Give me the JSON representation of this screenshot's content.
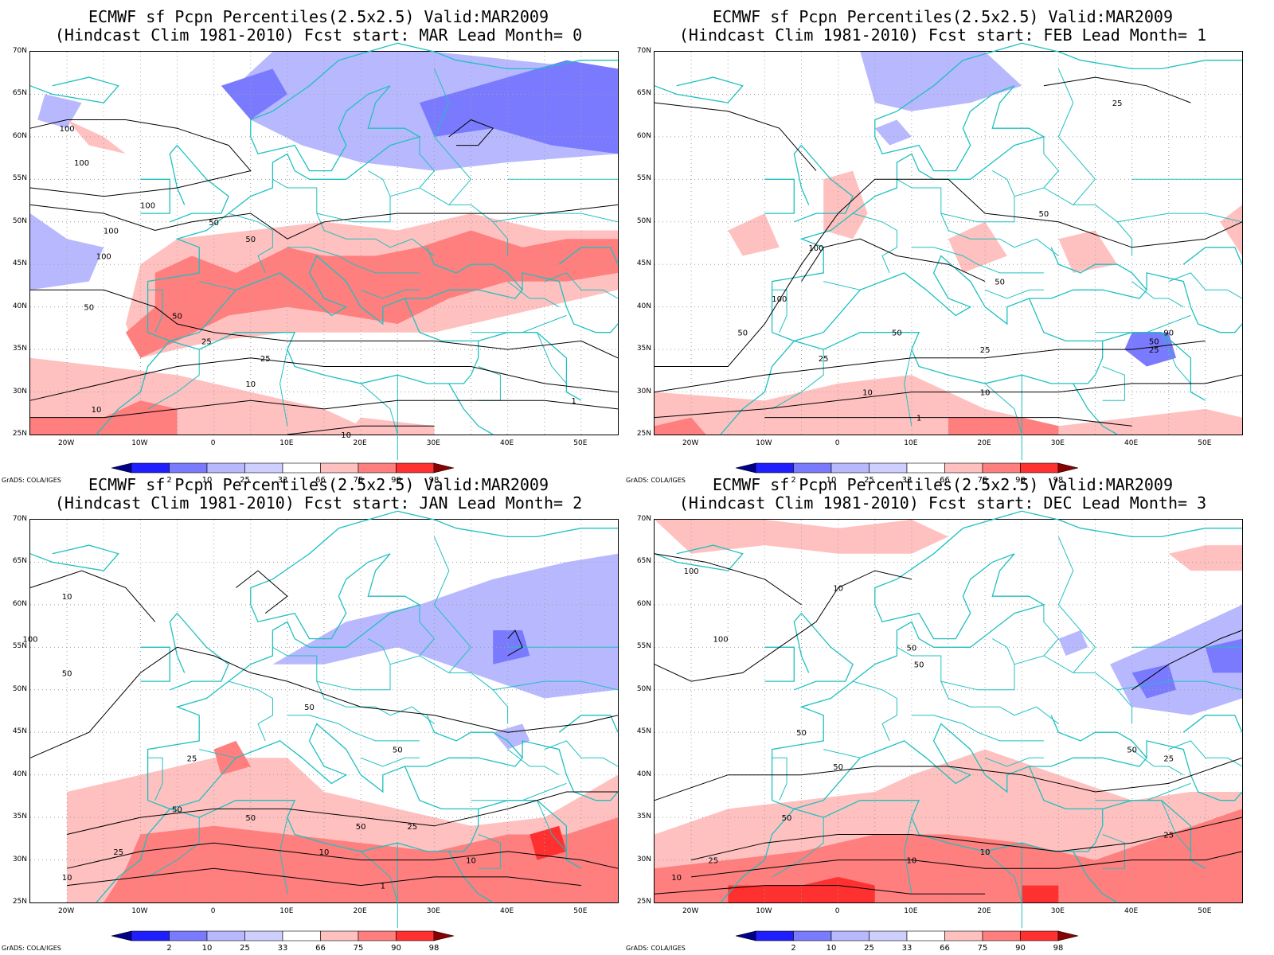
{
  "credit": "GrADS: COLA/IGES",
  "lat_labels": [
    "70N",
    "65N",
    "60N",
    "55N",
    "50N",
    "45N",
    "40N",
    "35N",
    "30N",
    "25N"
  ],
  "lon_labels": [
    "20W",
    "10W",
    "0",
    "10E",
    "20E",
    "30E",
    "40E",
    "50E"
  ],
  "colorbar": {
    "labels": [
      "2",
      "10",
      "25",
      "33",
      "66",
      "75",
      "90",
      "98"
    ],
    "colors": [
      "#00008b",
      "#1e1eff",
      "#7a7aff",
      "#b8b8ff",
      "#cfcfff",
      "#ffffff",
      "#ffc0c0",
      "#ff7e7e",
      "#ff3030",
      "#8b0000"
    ]
  },
  "colors": {
    "coast": "#20c0c0",
    "contour": "#000000",
    "grid": "#a0a0a0"
  },
  "panels": [
    {
      "title_line1": "ECMWF sf Pcpn Percentiles(2.5x2.5) Valid:MAR2009",
      "title_line2": "(Hindcast Clim 1981-2010) Fcst start: MAR  Lead Month= 0",
      "contour_labels": [
        "100",
        "100",
        "100",
        "100",
        "100",
        "50",
        "50",
        "50",
        "50",
        "25",
        "25",
        "10",
        "10",
        "10",
        "1"
      ]
    },
    {
      "title_line1": "ECMWF sf Pcpn Percentiles(2.5x2.5) Valid:MAR2009",
      "title_line2": "(Hindcast Clim 1981-2010) Fcst start: FEB  Lead Month= 1",
      "contour_labels": [
        "25",
        "50",
        "100",
        "100",
        "50",
        "50",
        "50",
        "25",
        "25",
        "10",
        "10",
        "1",
        "25",
        "50",
        "90"
      ]
    },
    {
      "title_line1": "ECMWF sf Pcpn Percentiles(2.5x2.5) Valid:MAR2009",
      "title_line2": "(Hindcast Clim 1981-2010) Fcst start: JAN  Lead Month= 2",
      "contour_labels": [
        "10",
        "100",
        "50",
        "25",
        "50",
        "50",
        "50",
        "50",
        "50",
        "25",
        "25",
        "10",
        "10",
        "10",
        "1"
      ]
    },
    {
      "title_line1": "ECMWF sf Pcpn Percentiles(2.5x2.5) Valid:MAR2009",
      "title_line2": "(Hindcast Clim 1981-2010) Fcst start: DEC  Lead Month= 3",
      "contour_labels": [
        "100",
        "10",
        "100",
        "50",
        "50",
        "50",
        "50",
        "50",
        "25",
        "10",
        "25",
        "10",
        "50",
        "25",
        "10"
      ]
    }
  ]
}
